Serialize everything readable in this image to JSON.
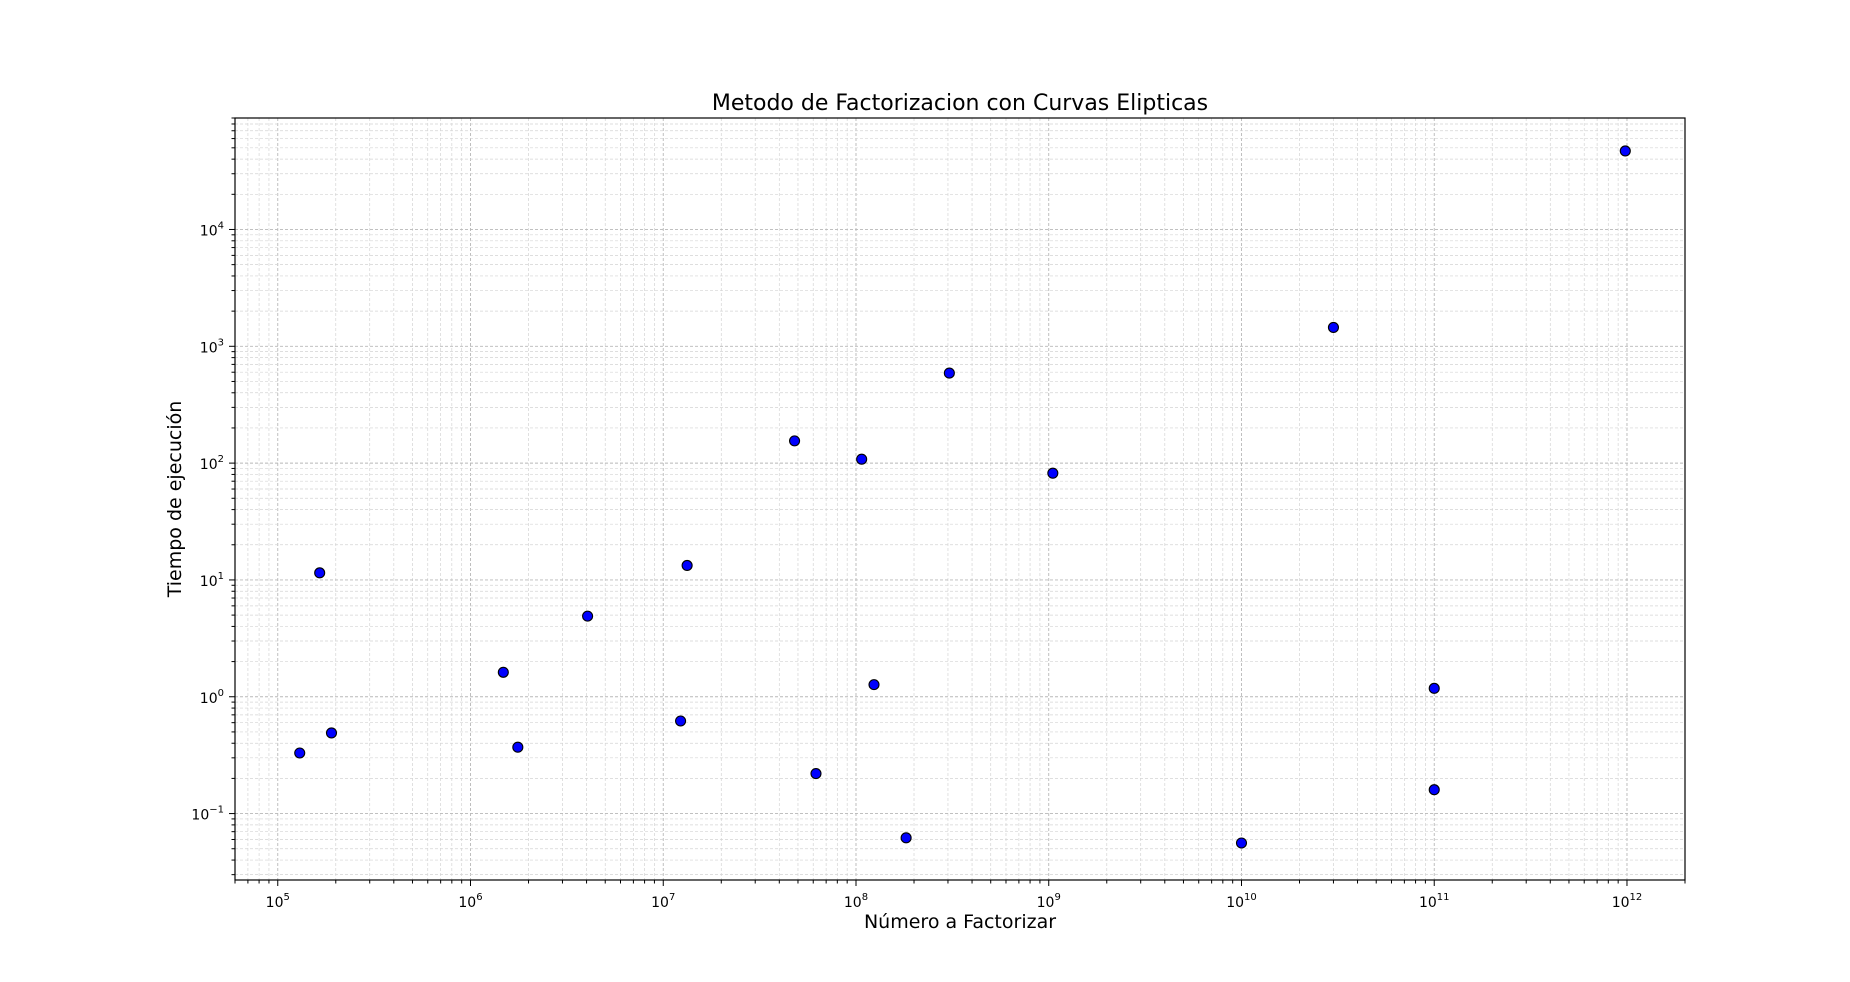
{
  "chart_data": {
    "type": "scatter",
    "title": "Metodo de Factorizacion con Curvas Elipticas",
    "xlabel": "Número a Factorizar",
    "ylabel": "Tiempo de ejecución",
    "xscale": "log",
    "yscale": "log",
    "xlim": [
      60000,
      2000000000000
    ],
    "ylim": [
      0.027,
      90000
    ],
    "grid": true,
    "grid_minor": true,
    "legend": "none",
    "marker_color": "#0000ff",
    "marker_edge_color": "#000000",
    "x_ticks": [
      {
        "value": 100000,
        "base": "10",
        "exp": "5"
      },
      {
        "value": 1000000,
        "base": "10",
        "exp": "6"
      },
      {
        "value": 10000000,
        "base": "10",
        "exp": "7"
      },
      {
        "value": 100000000,
        "base": "10",
        "exp": "8"
      },
      {
        "value": 1000000000,
        "base": "10",
        "exp": "9"
      },
      {
        "value": 10000000000,
        "base": "10",
        "exp": "10"
      },
      {
        "value": 100000000000,
        "base": "10",
        "exp": "11"
      },
      {
        "value": 1000000000000,
        "base": "10",
        "exp": "12"
      }
    ],
    "y_ticks": [
      {
        "value": 0.1,
        "base": "10",
        "exp": "−1"
      },
      {
        "value": 1,
        "base": "10",
        "exp": "0"
      },
      {
        "value": 10,
        "base": "10",
        "exp": "1"
      },
      {
        "value": 100,
        "base": "10",
        "exp": "2"
      },
      {
        "value": 1000,
        "base": "10",
        "exp": "3"
      },
      {
        "value": 10000,
        "base": "10",
        "exp": "4"
      }
    ],
    "points": [
      {
        "x": 130000,
        "y": 0.33
      },
      {
        "x": 165000,
        "y": 11.5
      },
      {
        "x": 190000,
        "y": 0.49
      },
      {
        "x": 1480000,
        "y": 1.62
      },
      {
        "x": 1760000,
        "y": 0.37
      },
      {
        "x": 4050000,
        "y": 4.9
      },
      {
        "x": 12300000,
        "y": 0.62
      },
      {
        "x": 13300000,
        "y": 13.3
      },
      {
        "x": 48000000,
        "y": 155
      },
      {
        "x": 62000000,
        "y": 0.22
      },
      {
        "x": 107000000,
        "y": 108
      },
      {
        "x": 124000000,
        "y": 1.27
      },
      {
        "x": 182000000,
        "y": 0.062
      },
      {
        "x": 305000000,
        "y": 590
      },
      {
        "x": 1050000000,
        "y": 82
      },
      {
        "x": 10000000000,
        "y": 0.056
      },
      {
        "x": 30000000000,
        "y": 1450
      },
      {
        "x": 100000000000,
        "y": 1.18
      },
      {
        "x": 100000000000,
        "y": 0.16
      },
      {
        "x": 980000000000,
        "y": 47000
      }
    ]
  }
}
